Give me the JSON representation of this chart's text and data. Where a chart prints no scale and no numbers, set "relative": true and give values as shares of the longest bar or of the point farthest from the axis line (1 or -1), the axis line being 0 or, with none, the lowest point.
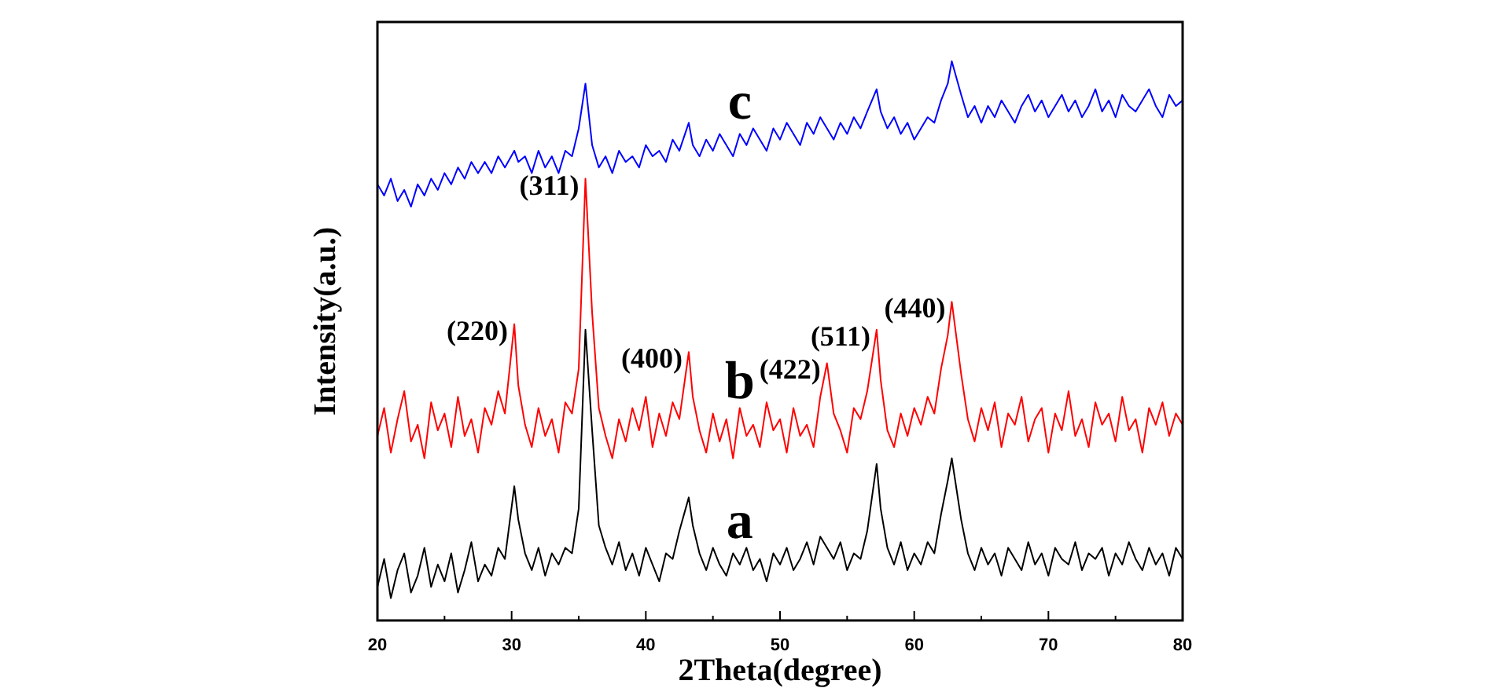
{
  "chart_data": {
    "type": "line",
    "relative": true,
    "xlabel": "2Theta(degree)",
    "ylabel": "Intensity(a.u.)",
    "xlim": [
      20,
      80
    ],
    "xticks": [
      20,
      30,
      40,
      50,
      60,
      70,
      80
    ],
    "tick_labels": "x",
    "grid": false,
    "x": [
      20,
      20.5,
      21,
      21.5,
      22,
      22.5,
      23,
      23.5,
      24,
      24.5,
      25,
      25.5,
      26,
      26.5,
      27,
      27.5,
      28,
      28.5,
      29,
      29.5,
      30.2,
      30.5,
      31,
      31.5,
      32,
      32.5,
      33,
      33.5,
      34,
      34.5,
      35,
      35.5,
      36,
      36.5,
      37,
      37.5,
      38,
      38.5,
      39,
      39.5,
      40,
      40.5,
      41,
      41.5,
      42,
      42.5,
      43.2,
      43.5,
      44,
      44.5,
      45,
      45.5,
      46,
      46.5,
      47,
      47.5,
      48,
      48.5,
      49,
      49.5,
      50,
      50.5,
      51,
      51.5,
      52,
      52.5,
      53,
      53.5,
      54,
      54.5,
      55,
      55.5,
      56,
      56.5,
      57.2,
      57.5,
      58,
      58.5,
      59,
      59.5,
      60,
      60.5,
      61,
      61.5,
      62,
      62.5,
      62.8,
      63.5,
      64,
      64.5,
      65,
      65.5,
      66,
      66.5,
      67,
      67.5,
      68,
      68.5,
      69,
      69.5,
      70,
      70.5,
      71,
      71.5,
      72,
      72.5,
      73,
      73.5,
      74,
      74.5,
      75,
      75.5,
      76,
      76.5,
      77,
      77.5,
      78,
      78.5,
      79,
      79.5,
      80
    ],
    "series": [
      {
        "name": "a",
        "color": "#000000",
        "values": [
          0.06,
          0.11,
          0.04,
          0.09,
          0.12,
          0.05,
          0.08,
          0.13,
          0.06,
          0.1,
          0.07,
          0.12,
          0.05,
          0.09,
          0.14,
          0.07,
          0.1,
          0.08,
          0.13,
          0.11,
          0.24,
          0.18,
          0.12,
          0.09,
          0.13,
          0.08,
          0.12,
          0.1,
          0.13,
          0.12,
          0.2,
          0.52,
          0.34,
          0.17,
          0.13,
          0.1,
          0.14,
          0.09,
          0.12,
          0.08,
          0.13,
          0.1,
          0.07,
          0.12,
          0.11,
          0.16,
          0.22,
          0.17,
          0.12,
          0.09,
          0.13,
          0.1,
          0.08,
          0.12,
          0.1,
          0.13,
          0.09,
          0.11,
          0.07,
          0.12,
          0.1,
          0.13,
          0.09,
          0.11,
          0.14,
          0.1,
          0.15,
          0.13,
          0.11,
          0.14,
          0.09,
          0.12,
          0.11,
          0.16,
          0.28,
          0.2,
          0.13,
          0.1,
          0.14,
          0.09,
          0.12,
          0.1,
          0.14,
          0.12,
          0.19,
          0.25,
          0.29,
          0.18,
          0.12,
          0.09,
          0.13,
          0.1,
          0.12,
          0.08,
          0.13,
          0.11,
          0.09,
          0.14,
          0.1,
          0.12,
          0.08,
          0.13,
          0.11,
          0.1,
          0.14,
          0.09,
          0.12,
          0.11,
          0.13,
          0.08,
          0.12,
          0.1,
          0.14,
          0.11,
          0.09,
          0.13,
          0.1,
          0.12,
          0.08,
          0.13,
          0.11
        ]
      },
      {
        "name": "b",
        "color": "#ff0000",
        "values": [
          0.33,
          0.38,
          0.3,
          0.36,
          0.41,
          0.32,
          0.35,
          0.29,
          0.39,
          0.34,
          0.37,
          0.31,
          0.4,
          0.33,
          0.36,
          0.3,
          0.38,
          0.35,
          0.41,
          0.37,
          0.53,
          0.42,
          0.35,
          0.31,
          0.38,
          0.33,
          0.36,
          0.3,
          0.39,
          0.37,
          0.45,
          0.79,
          0.55,
          0.38,
          0.33,
          0.29,
          0.36,
          0.32,
          0.38,
          0.34,
          0.4,
          0.31,
          0.37,
          0.33,
          0.39,
          0.36,
          0.48,
          0.4,
          0.34,
          0.3,
          0.37,
          0.32,
          0.36,
          0.29,
          0.38,
          0.33,
          0.35,
          0.31,
          0.39,
          0.34,
          0.36,
          0.3,
          0.38,
          0.33,
          0.35,
          0.31,
          0.4,
          0.46,
          0.37,
          0.34,
          0.3,
          0.38,
          0.36,
          0.41,
          0.52,
          0.43,
          0.34,
          0.31,
          0.37,
          0.33,
          0.38,
          0.35,
          0.4,
          0.37,
          0.45,
          0.51,
          0.57,
          0.44,
          0.36,
          0.32,
          0.38,
          0.34,
          0.39,
          0.31,
          0.37,
          0.35,
          0.4,
          0.32,
          0.36,
          0.38,
          0.3,
          0.37,
          0.34,
          0.41,
          0.33,
          0.36,
          0.31,
          0.39,
          0.35,
          0.37,
          0.32,
          0.4,
          0.34,
          0.36,
          0.3,
          0.38,
          0.35,
          0.39,
          0.33,
          0.37,
          0.35
        ]
      },
      {
        "name": "c",
        "color": "#0000ff",
        "values": [
          0.78,
          0.76,
          0.79,
          0.75,
          0.77,
          0.74,
          0.78,
          0.76,
          0.79,
          0.77,
          0.8,
          0.78,
          0.81,
          0.79,
          0.82,
          0.8,
          0.82,
          0.8,
          0.83,
          0.81,
          0.84,
          0.82,
          0.83,
          0.8,
          0.84,
          0.81,
          0.83,
          0.8,
          0.84,
          0.83,
          0.88,
          0.96,
          0.85,
          0.81,
          0.83,
          0.8,
          0.84,
          0.82,
          0.83,
          0.81,
          0.85,
          0.83,
          0.84,
          0.82,
          0.86,
          0.84,
          0.89,
          0.85,
          0.83,
          0.86,
          0.84,
          0.87,
          0.85,
          0.83,
          0.87,
          0.85,
          0.88,
          0.86,
          0.84,
          0.88,
          0.86,
          0.89,
          0.87,
          0.85,
          0.89,
          0.87,
          0.9,
          0.88,
          0.86,
          0.89,
          0.87,
          0.9,
          0.88,
          0.91,
          0.95,
          0.91,
          0.88,
          0.9,
          0.87,
          0.89,
          0.86,
          0.88,
          0.9,
          0.89,
          0.93,
          0.96,
          1,
          0.94,
          0.9,
          0.92,
          0.89,
          0.92,
          0.9,
          0.93,
          0.91,
          0.89,
          0.92,
          0.94,
          0.91,
          0.93,
          0.9,
          0.92,
          0.94,
          0.91,
          0.93,
          0.9,
          0.92,
          0.95,
          0.91,
          0.93,
          0.9,
          0.94,
          0.92,
          0.91,
          0.93,
          0.95,
          0.92,
          0.9,
          0.94,
          0.92,
          0.93
        ]
      }
    ],
    "annotations": [
      {
        "text": "(220)",
        "x": 30.2,
        "y": 0.53
      },
      {
        "text": "(311)",
        "x": 35.5,
        "y": 0.79
      },
      {
        "text": "(400)",
        "x": 43.2,
        "y": 0.48
      },
      {
        "text": "(422)",
        "x": 53.5,
        "y": 0.46
      },
      {
        "text": "(511)",
        "x": 57.2,
        "y": 0.52
      },
      {
        "text": "(440)",
        "x": 62.8,
        "y": 0.57
      }
    ]
  }
}
